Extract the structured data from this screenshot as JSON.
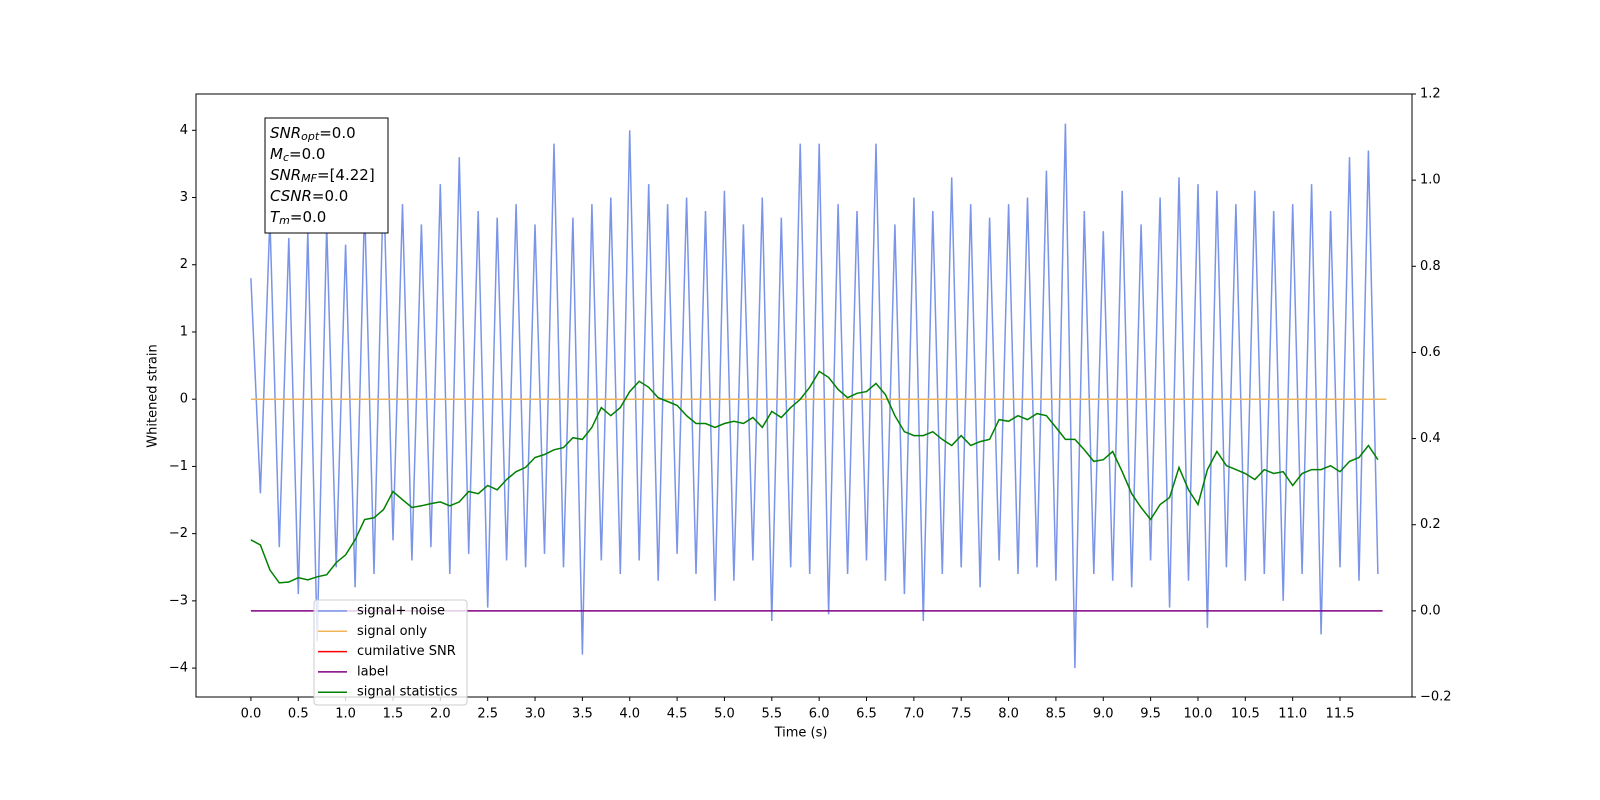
{
  "chart_data": {
    "type": "line",
    "xlabel": "Time (s)",
    "ylabel": "Whitened strain",
    "xlim": [
      -0.58,
      12.26
    ],
    "ylim": [
      -4.43,
      4.54
    ],
    "y2lim": [
      -0.2,
      1.2
    ],
    "xticks": [
      {
        "value": 0,
        "label": "0.0"
      },
      {
        "value": 0.5,
        "label": "0.5"
      },
      {
        "value": 1,
        "label": "1.0"
      },
      {
        "value": 1.5,
        "label": "1.5"
      },
      {
        "value": 2,
        "label": "2.0"
      },
      {
        "value": 2.5,
        "label": "2.5"
      },
      {
        "value": 3,
        "label": "3.0"
      },
      {
        "value": 3.5,
        "label": "3.5"
      },
      {
        "value": 4,
        "label": "4.0"
      },
      {
        "value": 4.5,
        "label": "4.5"
      },
      {
        "value": 5,
        "label": "5.0"
      },
      {
        "value": 5.5,
        "label": "5.5"
      },
      {
        "value": 6,
        "label": "6.0"
      },
      {
        "value": 6.5,
        "label": "6.5"
      },
      {
        "value": 7,
        "label": "7.0"
      },
      {
        "value": 7.5,
        "label": "7.5"
      },
      {
        "value": 8,
        "label": "8.0"
      },
      {
        "value": 8.5,
        "label": "8.5"
      },
      {
        "value": 9,
        "label": "9.0"
      },
      {
        "value": 9.5,
        "label": "9.5"
      },
      {
        "value": 10,
        "label": "10.0"
      },
      {
        "value": 10.5,
        "label": "10.5"
      },
      {
        "value": 11,
        "label": "11.0"
      },
      {
        "value": 11.5,
        "label": "11.5"
      }
    ],
    "yticks": [
      {
        "value": -4,
        "label": "−4"
      },
      {
        "value": -3,
        "label": "−3"
      },
      {
        "value": -2,
        "label": "−2"
      },
      {
        "value": -1,
        "label": "−1"
      },
      0,
      1,
      2,
      3,
      4
    ],
    "y2ticks": [
      {
        "value": -0.2,
        "label": "−0.2"
      },
      {
        "value": 0,
        "label": "0.0"
      },
      {
        "value": 0.2,
        "label": "0.2"
      },
      {
        "value": 0.4,
        "label": "0.4"
      },
      {
        "value": 0.6,
        "label": "0.6"
      },
      {
        "value": 0.8,
        "label": "0.8"
      },
      {
        "value": 1,
        "label": "1.0"
      },
      {
        "value": 1.2,
        "label": "1.2"
      }
    ],
    "annotations": [
      {
        "name": "SNR",
        "sub": "opt",
        "text": "=0.0"
      },
      {
        "name": "M",
        "sub": "c",
        "text": "=0.0"
      },
      {
        "name": "SNR",
        "sub": "MF",
        "text": "=[4.22]"
      },
      {
        "name": "CSNR",
        "sub": "",
        "text": "=0.0"
      },
      {
        "name": "T",
        "sub": "m",
        "text": "=0.0"
      }
    ],
    "legend": "lower left",
    "series": [
      {
        "name": "signal+ noise",
        "color": "#7a94e8",
        "x": [
          0,
          0.1,
          0.2,
          0.3,
          0.4,
          0.5,
          0.6,
          0.7,
          0.8,
          0.9,
          1,
          1.1,
          1.2,
          1.3,
          1.4,
          1.5,
          1.6,
          1.7,
          1.8,
          1.9,
          2,
          2.1,
          2.2,
          2.3,
          2.4,
          2.5,
          2.6,
          2.7,
          2.8,
          2.9,
          3,
          3.1,
          3.2,
          3.3,
          3.4,
          3.5,
          3.6,
          3.7,
          3.8,
          3.9,
          4,
          4.1,
          4.2,
          4.3,
          4.4,
          4.5,
          4.6,
          4.7,
          4.8,
          4.9,
          5,
          5.1,
          5.2,
          5.3,
          5.4,
          5.5,
          5.6,
          5.7,
          5.8,
          5.9,
          6,
          6.1,
          6.2,
          6.3,
          6.4,
          6.5,
          6.6,
          6.7,
          6.8,
          6.9,
          7,
          7.1,
          7.2,
          7.3,
          7.4,
          7.5,
          7.6,
          7.7,
          7.8,
          7.9,
          8,
          8.1,
          8.2,
          8.3,
          8.4,
          8.5,
          8.6,
          8.7,
          8.8,
          8.9,
          9,
          9.1,
          9.2,
          9.3,
          9.4,
          9.5,
          9.6,
          9.7,
          9.8,
          9.9,
          10,
          10.1,
          10.2,
          10.3,
          10.4,
          10.5,
          10.6,
          10.7,
          10.8,
          10.9,
          11,
          11.1,
          11.2,
          11.3,
          11.4,
          11.5,
          11.6,
          11.7,
          11.8,
          11.9
        ],
        "values": [
          1.8,
          -1.4,
          2.7,
          -2.2,
          2.4,
          -2.9,
          2.5,
          -3.6,
          2.6,
          -2.5,
          2.3,
          -2.8,
          2.9,
          -2.6,
          3.3,
          -2.1,
          2.9,
          -2.4,
          2.6,
          -2.2,
          3.2,
          -2.6,
          3.6,
          -2.3,
          2.8,
          -3.1,
          2.7,
          -2.4,
          2.9,
          -2.5,
          2.6,
          -2.3,
          3.8,
          -2.5,
          2.7,
          -3.8,
          2.9,
          -2.4,
          3.0,
          -2.6,
          4.0,
          -2.4,
          3.2,
          -2.7,
          2.9,
          -2.3,
          3.0,
          -2.6,
          2.8,
          -3.0,
          3.1,
          -2.7,
          2.6,
          -2.4,
          3.0,
          -3.3,
          2.7,
          -2.5,
          3.8,
          -2.6,
          3.8,
          -3.2,
          2.9,
          -2.6,
          2.8,
          -2.4,
          3.8,
          -2.7,
          2.6,
          -2.9,
          3.0,
          -3.3,
          2.8,
          -2.6,
          3.3,
          -2.5,
          2.9,
          -2.8,
          2.7,
          -2.4,
          2.9,
          -2.6,
          3.0,
          -2.5,
          3.4,
          -2.7,
          4.1,
          -4.0,
          2.8,
          -2.6,
          2.5,
          -2.7,
          3.1,
          -2.8,
          2.6,
          -2.4,
          3.0,
          -3.1,
          3.3,
          -2.7,
          3.2,
          -3.4,
          3.1,
          -2.5,
          2.9,
          -2.7,
          3.1,
          -2.6,
          2.8,
          -3.0,
          2.9,
          -2.6,
          3.2,
          -3.5,
          2.8,
          -2.5,
          3.6,
          -2.7,
          3.7,
          -2.6
        ]
      },
      {
        "name": "signal only",
        "color": "#f2b45a",
        "x": [
          0,
          11.99
        ],
        "values": [
          0,
          0
        ]
      },
      {
        "name": "cumilative SNR",
        "color": "#ff0000",
        "x": [],
        "values": []
      },
      {
        "name": "label",
        "color": "#800080",
        "axis": "y2",
        "x": [
          0,
          11.95
        ],
        "values": [
          0,
          0
        ]
      },
      {
        "name": "signal statistics",
        "color": "#008000",
        "axis": "y2",
        "x": [
          0,
          0.1,
          0.2,
          0.3,
          0.4,
          0.5,
          0.6,
          0.7,
          0.8,
          0.9,
          1,
          1.1,
          1.2,
          1.3,
          1.4,
          1.5,
          1.6,
          1.7,
          1.8,
          1.9,
          2,
          2.1,
          2.2,
          2.3,
          2.4,
          2.5,
          2.6,
          2.7,
          2.8,
          2.9,
          3,
          3.1,
          3.2,
          3.3,
          3.4,
          3.5,
          3.6,
          3.7,
          3.8,
          3.9,
          4,
          4.1,
          4.2,
          4.3,
          4.4,
          4.5,
          4.6,
          4.7,
          4.8,
          4.9,
          5,
          5.1,
          5.2,
          5.3,
          5.4,
          5.5,
          5.6,
          5.7,
          5.8,
          5.9,
          6,
          6.1,
          6.2,
          6.3,
          6.4,
          6.5,
          6.6,
          6.7,
          6.8,
          6.9,
          7,
          7.1,
          7.2,
          7.3,
          7.4,
          7.5,
          7.6,
          7.7,
          7.8,
          7.9,
          8,
          8.1,
          8.2,
          8.3,
          8.4,
          8.5,
          8.6,
          8.7,
          8.8,
          8.9,
          9,
          9.1,
          9.2,
          9.3,
          9.4,
          9.5,
          9.6,
          9.7,
          9.8,
          9.9,
          10,
          10.1,
          10.2,
          10.3,
          10.4,
          10.5,
          10.6,
          10.7,
          10.8,
          10.9,
          11,
          11.1,
          11.2,
          11.3,
          11.4,
          11.5,
          11.6,
          11.7,
          11.8,
          11.9
        ],
        "values": [
          0.165,
          0.153,
          0.095,
          0.065,
          0.067,
          0.077,
          0.072,
          0.079,
          0.084,
          0.112,
          0.13,
          0.165,
          0.212,
          0.216,
          0.235,
          0.277,
          0.258,
          0.24,
          0.244,
          0.249,
          0.253,
          0.244,
          0.253,
          0.277,
          0.272,
          0.291,
          0.281,
          0.305,
          0.323,
          0.333,
          0.356,
          0.363,
          0.374,
          0.379,
          0.402,
          0.398,
          0.426,
          0.472,
          0.453,
          0.472,
          0.509,
          0.533,
          0.519,
          0.495,
          0.486,
          0.477,
          0.453,
          0.435,
          0.435,
          0.426,
          0.435,
          0.44,
          0.435,
          0.449,
          0.426,
          0.463,
          0.449,
          0.472,
          0.491,
          0.519,
          0.556,
          0.542,
          0.514,
          0.495,
          0.505,
          0.509,
          0.528,
          0.502,
          0.453,
          0.416,
          0.407,
          0.407,
          0.416,
          0.398,
          0.384,
          0.407,
          0.384,
          0.393,
          0.398,
          0.444,
          0.44,
          0.453,
          0.444,
          0.458,
          0.453,
          0.426,
          0.398,
          0.398,
          0.374,
          0.347,
          0.351,
          0.37,
          0.323,
          0.272,
          0.24,
          0.212,
          0.247,
          0.263,
          0.333,
          0.281,
          0.247,
          0.328,
          0.37,
          0.337,
          0.328,
          0.319,
          0.305,
          0.328,
          0.319,
          0.323,
          0.291,
          0.319,
          0.328,
          0.328,
          0.337,
          0.323,
          0.347,
          0.356,
          0.384,
          0.351
        ]
      }
    ]
  }
}
